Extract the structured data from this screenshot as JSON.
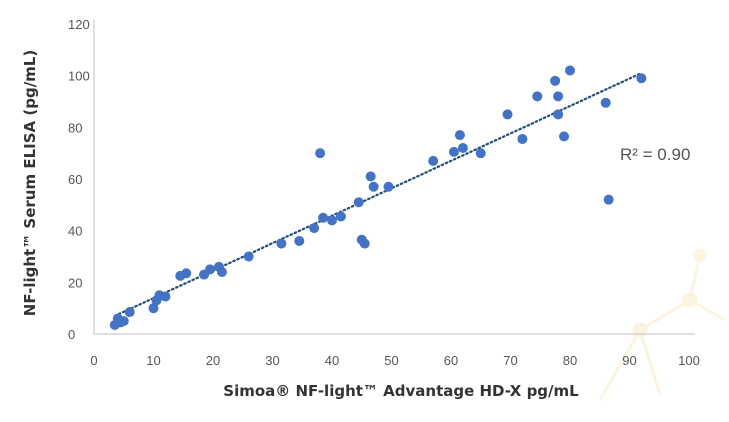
{
  "chart_data": {
    "type": "scatter",
    "xlabel": "Simoa® NF-light™ Advantage HD-X pg/mL",
    "ylabel": "NF-light™ Serum ELISA (pg/mL)",
    "xlim": [
      0,
      100
    ],
    "ylim": [
      0,
      120
    ],
    "x_ticks": [
      0,
      10,
      20,
      30,
      40,
      50,
      60,
      70,
      80,
      90,
      100
    ],
    "y_ticks": [
      0,
      20,
      40,
      60,
      80,
      100,
      120
    ],
    "grid": false,
    "marker_color": "#4472C4",
    "trendline": {
      "x": [
        3.5,
        92
      ],
      "y": [
        7,
        101
      ],
      "style": "dotted",
      "color": "#1F4E79"
    },
    "annotation": "R² = 0.90",
    "points": [
      {
        "x": 3.5,
        "y": 3.5
      },
      {
        "x": 4,
        "y": 6
      },
      {
        "x": 4.5,
        "y": 4.5
      },
      {
        "x": 5,
        "y": 5
      },
      {
        "x": 6,
        "y": 8.5
      },
      {
        "x": 10,
        "y": 10
      },
      {
        "x": 10.5,
        "y": 13
      },
      {
        "x": 11,
        "y": 15
      },
      {
        "x": 12,
        "y": 14.5
      },
      {
        "x": 14.5,
        "y": 22.5
      },
      {
        "x": 15.5,
        "y": 23.5
      },
      {
        "x": 18.5,
        "y": 23
      },
      {
        "x": 19.5,
        "y": 25
      },
      {
        "x": 21,
        "y": 26
      },
      {
        "x": 21.5,
        "y": 24
      },
      {
        "x": 26,
        "y": 30
      },
      {
        "x": 31.5,
        "y": 35
      },
      {
        "x": 34.5,
        "y": 36
      },
      {
        "x": 37,
        "y": 41
      },
      {
        "x": 38,
        "y": 70
      },
      {
        "x": 38.5,
        "y": 45
      },
      {
        "x": 40,
        "y": 44
      },
      {
        "x": 41.5,
        "y": 45.5
      },
      {
        "x": 44.5,
        "y": 51
      },
      {
        "x": 45,
        "y": 36.5
      },
      {
        "x": 45.5,
        "y": 35
      },
      {
        "x": 46.5,
        "y": 61
      },
      {
        "x": 47,
        "y": 57
      },
      {
        "x": 49.5,
        "y": 57
      },
      {
        "x": 57,
        "y": 67
      },
      {
        "x": 60.5,
        "y": 70.5
      },
      {
        "x": 61.5,
        "y": 77
      },
      {
        "x": 62,
        "y": 72
      },
      {
        "x": 65,
        "y": 70
      },
      {
        "x": 69.5,
        "y": 85
      },
      {
        "x": 72,
        "y": 75.5
      },
      {
        "x": 74.5,
        "y": 92
      },
      {
        "x": 77.5,
        "y": 98
      },
      {
        "x": 78,
        "y": 92
      },
      {
        "x": 78,
        "y": 85
      },
      {
        "x": 79,
        "y": 76.5
      },
      {
        "x": 80,
        "y": 102
      },
      {
        "x": 86,
        "y": 89.5
      },
      {
        "x": 86.5,
        "y": 52
      },
      {
        "x": 92,
        "y": 99
      }
    ]
  }
}
